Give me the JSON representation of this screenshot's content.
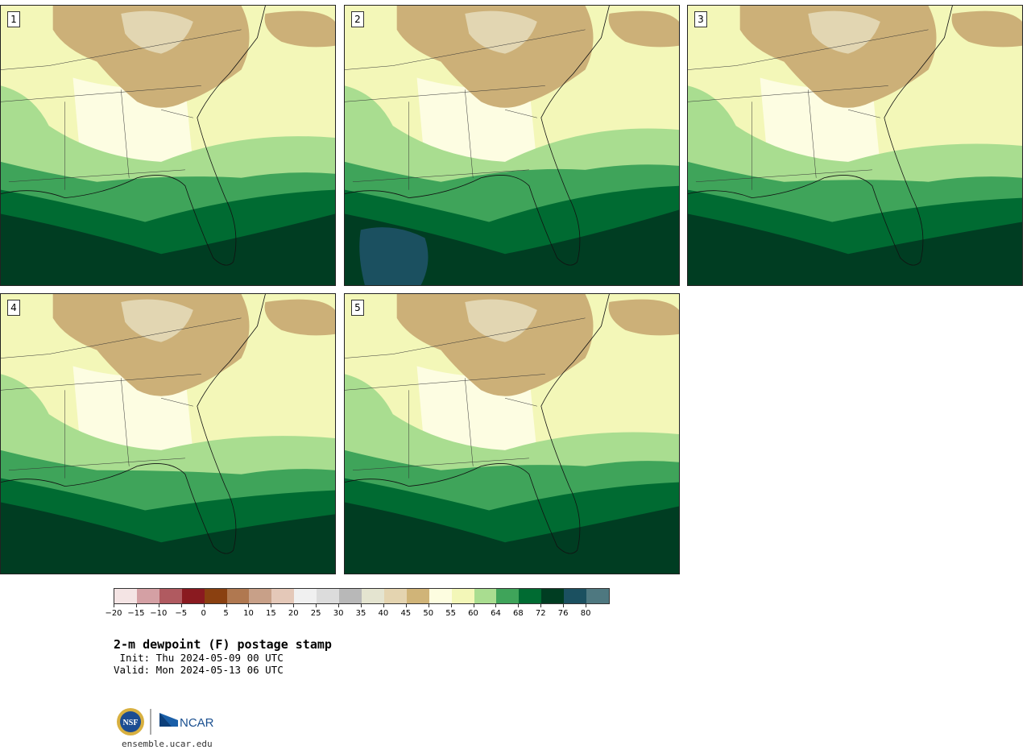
{
  "figure": {
    "title": "2-m dewpoint (F) postage stamp",
    "init": " Init: Thu 2024-05-09 00 UTC",
    "valid": "Valid: Mon 2024-05-13 06 UTC",
    "site": "ensemble.ucar.edu"
  },
  "panels": [
    {
      "label": "1",
      "member": 1
    },
    {
      "label": "2",
      "member": 2
    },
    {
      "label": "3",
      "member": 3
    },
    {
      "label": "4",
      "member": 4
    },
    {
      "label": "5",
      "member": 5
    }
  ],
  "colorbar": {
    "units": "F",
    "ticks": [
      "−20",
      "−15",
      "−10",
      "−5",
      "0",
      "5",
      "10",
      "15",
      "20",
      "25",
      "30",
      "35",
      "40",
      "45",
      "50",
      "55",
      "60",
      "64",
      "68",
      "72",
      "76",
      "80"
    ],
    "colors": [
      "#f4e4e4",
      "#d4a0a4",
      "#b05a60",
      "#8a1a20",
      "#8a4010",
      "#b07850",
      "#c8a088",
      "#e4c8b8",
      "#f0f0f0",
      "#dcdcdc",
      "#b8b8b8",
      "#e4e4d0",
      "#e4d4b0",
      "#d0b478",
      "#fdfde0",
      "#f3f7b8",
      "#a9dd90",
      "#3fa45a",
      "#006b32",
      "#003d22",
      "#1b5060",
      "#4e7880"
    ]
  },
  "colors": {
    "dry_brown": "#ccb078",
    "light_tan": "#e2d6b2",
    "pale": "#fdfde2",
    "pale_yellow": "#f3f7b8",
    "light_green": "#a9dd90",
    "mid_green": "#3fa45a",
    "green": "#006b32",
    "dark_green": "#003d22",
    "teal": "#1b5060"
  },
  "logos": {
    "nsf": "NSF",
    "ncar": "NCAR"
  }
}
